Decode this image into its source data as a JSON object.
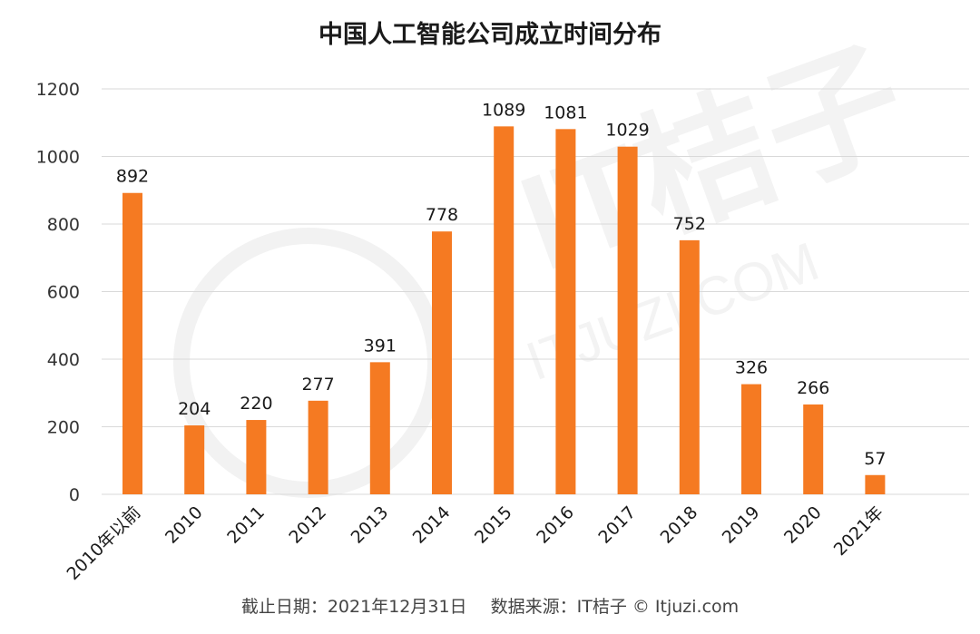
{
  "chart_data": {
    "type": "bar",
    "title": "中国人工智能公司成立时间分布",
    "categories": [
      "2010年以前",
      "2010",
      "2011",
      "2012",
      "2013",
      "2014",
      "2015",
      "2016",
      "2017",
      "2018",
      "2019",
      "2020",
      "2021年"
    ],
    "values": [
      892,
      204,
      220,
      277,
      391,
      778,
      1089,
      1081,
      1029,
      752,
      326,
      266,
      57
    ],
    "ylim": [
      0,
      1200
    ],
    "yticks": [
      0,
      200,
      400,
      600,
      800,
      1000,
      1200
    ],
    "xlabel": "",
    "ylabel": "",
    "grid": true,
    "data_labels": true
  },
  "colors": {
    "bar": "#f57a22",
    "grid": "#d9d9d9",
    "text": "#1a1a1a"
  },
  "footer": {
    "date_note": "截止日期：2021年12月31日",
    "source_note": "数据来源：IT桔子 © Itjuzi.com"
  },
  "watermark": {
    "text": "IT桔子",
    "sub": "ITJUZI.COM"
  }
}
